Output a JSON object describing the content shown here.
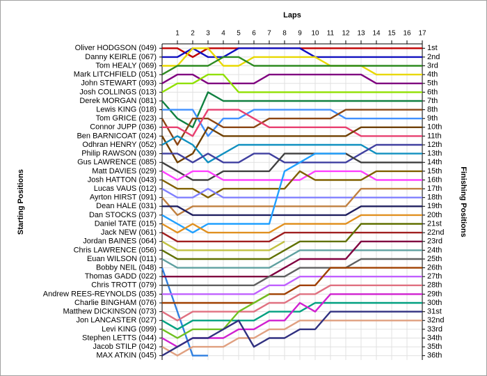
{
  "chart_data": {
    "type": "line",
    "x_label": "Laps",
    "y_label": "Starting Positions",
    "y2_label": "Finishing Positions",
    "x": [
      0,
      1,
      2,
      3,
      4,
      5,
      6,
      7,
      8,
      9,
      10,
      11,
      12,
      13,
      14,
      15,
      16,
      17
    ],
    "xlim": [
      0,
      17
    ],
    "xticks": [
      1,
      2,
      3,
      4,
      5,
      6,
      7,
      8,
      9,
      10,
      11,
      12,
      13,
      14,
      15,
      16,
      17
    ],
    "ylim": [
      36.5,
      0.5
    ],
    "yticks": [
      1,
      2,
      3,
      4,
      5,
      6,
      7,
      8,
      9,
      10,
      11,
      12,
      13,
      14,
      15,
      16,
      17,
      18,
      19,
      20,
      21,
      22,
      23,
      24,
      25,
      26,
      27,
      28,
      29,
      30,
      31,
      32,
      33,
      34,
      35,
      36
    ],
    "finishing_labels": [
      "1st",
      "2nd",
      "3rd",
      "4th",
      "5th",
      "6th",
      "7th",
      "8th",
      "9th",
      "10th",
      "11th",
      "12th",
      "13th",
      "14th",
      "15th",
      "16th",
      "17th",
      "18th",
      "19th",
      "20th",
      "21st",
      "22nd",
      "23rd",
      "24th",
      "25th",
      "26th",
      "27th",
      "28th",
      "29th",
      "30th",
      "31st",
      "32nd",
      "33rd",
      "34th",
      "35th",
      "36th"
    ],
    "grid": true,
    "series": [
      {
        "name": "Oliver HODGSON (049)",
        "color": "#c00000",
        "values": [
          1,
          1,
          2,
          1,
          1,
          1,
          1,
          1,
          1,
          1,
          1,
          1,
          1,
          1,
          1,
          1,
          1,
          1
        ]
      },
      {
        "name": "Danny KEIRLE (067)",
        "color": "#1010c0",
        "values": [
          2,
          2,
          1,
          2,
          2,
          1,
          1,
          1,
          1,
          1,
          2,
          2,
          2,
          2,
          2,
          2,
          2,
          2
        ]
      },
      {
        "name": "Tom HEALY (069)",
        "color": "#e8d800",
        "values": [
          3,
          3,
          1,
          1,
          3,
          3,
          2,
          2,
          2,
          2,
          2,
          3,
          3,
          3,
          4,
          4,
          4,
          4
        ]
      },
      {
        "name": "Mark LITCHFIELD (051)",
        "color": "#2e8b20",
        "values": [
          4,
          3,
          3,
          3,
          2,
          2,
          3,
          3,
          3,
          3,
          3,
          3,
          3,
          3,
          3,
          3,
          3,
          3
        ]
      },
      {
        "name": "John STEWART (093)",
        "color": "#800080",
        "values": [
          5,
          4,
          4,
          5,
          5,
          5,
          5,
          4,
          4,
          4,
          4,
          4,
          4,
          4,
          5,
          5,
          5,
          5
        ]
      },
      {
        "name": "Josh COLLINGS (013)",
        "color": "#90e000",
        "values": [
          6,
          5,
          5,
          4,
          4,
          6,
          6,
          6,
          6,
          6,
          6,
          6,
          6,
          6,
          6,
          6,
          6,
          6
        ]
      },
      {
        "name": "Derek MORGAN (081)",
        "color": "#108040",
        "values": [
          7,
          9,
          10,
          6,
          7,
          7,
          7,
          7,
          7,
          7,
          7,
          7,
          7,
          7,
          7,
          7,
          7,
          7
        ]
      },
      {
        "name": "Lewis KING (018)",
        "color": "#4090ff",
        "values": [
          8,
          8,
          8,
          11,
          9,
          9,
          8,
          8,
          8,
          8,
          8,
          8,
          9,
          9,
          9,
          9,
          9,
          9
        ]
      },
      {
        "name": "Tom GRICE (023)",
        "color": "#8b4513",
        "values": [
          9,
          12,
          9,
          9,
          10,
          10,
          10,
          9,
          9,
          9,
          9,
          9,
          8,
          8,
          8,
          8,
          8,
          8
        ]
      },
      {
        "name": "Connor JUPP (036)",
        "color": "#e84070",
        "values": [
          10,
          10,
          11,
          8,
          8,
          8,
          9,
          10,
          10,
          10,
          10,
          10,
          10,
          11,
          11,
          11,
          11,
          11
        ]
      },
      {
        "name": "Ben BARNICOAT (024)",
        "color": "#704000",
        "values": [
          11,
          14,
          13,
          10,
          11,
          11,
          11,
          11,
          11,
          11,
          11,
          11,
          11,
          10,
          10,
          10,
          10,
          10
        ]
      },
      {
        "name": "Odhran HENRY (052)",
        "color": "#1090c0",
        "values": [
          12,
          11,
          12,
          14,
          13,
          12,
          12,
          12,
          12,
          12,
          12,
          12,
          12,
          12,
          13,
          13,
          13,
          13
        ]
      },
      {
        "name": "Philip RAWSON (039)",
        "color": "#4040a0",
        "values": [
          13,
          13,
          14,
          13,
          14,
          14,
          13,
          13,
          14,
          14,
          14,
          14,
          14,
          13,
          12,
          12,
          12,
          12
        ]
      },
      {
        "name": "Gus LAWRENCE (085)",
        "color": "#404040",
        "values": [
          14,
          15,
          16,
          16,
          15,
          15,
          15,
          15,
          13,
          13,
          13,
          13,
          13,
          14,
          14,
          14,
          14,
          14
        ]
      },
      {
        "name": "Matt DAVIES (029)",
        "color": "#ff40ff",
        "values": [
          15,
          16,
          15,
          15,
          16,
          16,
          16,
          16,
          16,
          16,
          15,
          15,
          15,
          15,
          16,
          16,
          16,
          16
        ]
      },
      {
        "name": "Josh HATTON (043)",
        "color": "#806000",
        "values": [
          16,
          17,
          17,
          18,
          17,
          17,
          17,
          17,
          17,
          15,
          16,
          16,
          16,
          16,
          15,
          15,
          15,
          15
        ]
      },
      {
        "name": "Lucas VAUS (012)",
        "color": "#8080ff",
        "values": [
          17,
          18,
          18,
          17,
          18,
          18,
          18,
          18,
          18,
          18,
          18,
          18,
          18,
          18,
          18,
          18,
          18,
          18
        ]
      },
      {
        "name": "Ayrton HIRST (091)",
        "color": "#c08040",
        "values": [
          18,
          20,
          19,
          19,
          19,
          19,
          19,
          19,
          19,
          19,
          19,
          19,
          19,
          17,
          17,
          17,
          17,
          17
        ]
      },
      {
        "name": "Dean HALE (031)",
        "color": "#202060",
        "values": [
          19,
          19,
          20,
          20,
          20,
          20,
          20,
          20,
          20,
          20,
          20,
          20,
          20,
          19,
          19,
          19,
          19,
          19
        ]
      },
      {
        "name": "Dan STOCKS (037)",
        "color": "#20a0ff",
        "values": [
          20,
          21,
          22,
          21,
          21,
          21,
          21,
          21,
          15,
          14,
          13,
          13,
          13,
          null,
          null,
          null,
          null,
          null
        ]
      },
      {
        "name": "Daniel TATE (015)",
        "color": "#e09020",
        "values": [
          21,
          22,
          21,
          22,
          22,
          22,
          22,
          22,
          21,
          21,
          21,
          21,
          21,
          20,
          20,
          20,
          20,
          20
        ]
      },
      {
        "name": "Jack NEW (061)",
        "color": "#a02020",
        "values": [
          22,
          23,
          23,
          23,
          23,
          23,
          23,
          23,
          22,
          22,
          22,
          22,
          22,
          22,
          22,
          22,
          22,
          22
        ]
      },
      {
        "name": "Jordan BAINES (064)",
        "color": "#c0c040",
        "values": [
          23,
          24,
          24,
          24,
          24,
          24,
          24,
          24,
          23,
          null,
          null,
          null,
          null,
          null,
          null,
          null,
          null,
          null
        ]
      },
      {
        "name": "Chris LAWRENCE (056)",
        "color": "#607000",
        "values": [
          24,
          25,
          25,
          25,
          25,
          25,
          25,
          25,
          24,
          23,
          23,
          23,
          23,
          21,
          21,
          21,
          21,
          21
        ]
      },
      {
        "name": "Euan WILSON (011)",
        "color": "#5fa0a0",
        "values": [
          25,
          26,
          26,
          26,
          26,
          26,
          26,
          26,
          25,
          24,
          24,
          24,
          24,
          24,
          24,
          24,
          24,
          24
        ]
      },
      {
        "name": "Bobby NEIL (048)",
        "color": "#3080e0",
        "values": [
          26,
          31,
          36,
          36,
          null,
          null,
          null,
          null,
          null,
          null,
          null,
          null,
          null,
          null,
          null,
          null,
          null,
          null
        ]
      },
      {
        "name": "Thomas GADD (022)",
        "color": "#800040",
        "values": [
          27,
          27,
          27,
          27,
          27,
          27,
          27,
          27,
          26,
          25,
          25,
          25,
          25,
          23,
          23,
          23,
          23,
          23
        ]
      },
      {
        "name": "Chris TROTT (079)",
        "color": "#606060",
        "values": [
          28,
          28,
          28,
          28,
          28,
          28,
          28,
          27,
          27,
          26,
          26,
          26,
          26,
          25,
          25,
          25,
          25,
          25
        ]
      },
      {
        "name": "Andrew REES-REYNOLDS (035)",
        "color": "#c060ff",
        "values": [
          29,
          29,
          29,
          29,
          29,
          29,
          29,
          28,
          28,
          27,
          27,
          27,
          27,
          27,
          27,
          27,
          27,
          27
        ]
      },
      {
        "name": "Charlie BINGHAM (076)",
        "color": "#a04000",
        "values": [
          30,
          30,
          30,
          30,
          30,
          30,
          30,
          29,
          29,
          28,
          28,
          26,
          26,
          26,
          26,
          26,
          26,
          26
        ]
      },
      {
        "name": "Matthew DICKINSON (073)",
        "color": "#e07080",
        "values": [
          31,
          32,
          31,
          31,
          31,
          31,
          31,
          30,
          30,
          29,
          29,
          28,
          28,
          28,
          28,
          28,
          28,
          28
        ]
      },
      {
        "name": "Jon LANCASTER (027)",
        "color": "#00a080",
        "values": [
          32,
          33,
          32,
          32,
          32,
          32,
          32,
          31,
          31,
          31,
          30,
          30,
          30,
          30,
          30,
          30,
          30,
          30
        ]
      },
      {
        "name": "Levi KING (099)",
        "color": "#70c020",
        "values": [
          33,
          34,
          33,
          33,
          33,
          31,
          30,
          29,
          null,
          null,
          null,
          null,
          null,
          null,
          null,
          null,
          null,
          null
        ]
      },
      {
        "name": "Stephen LETTS (044)",
        "color": "#d020d0",
        "values": [
          34,
          35,
          34,
          34,
          34,
          33,
          33,
          32,
          32,
          30,
          31,
          29,
          29,
          29,
          29,
          29,
          29,
          29
        ]
      },
      {
        "name": "Jacob STILP (042)",
        "color": "#e0a080",
        "values": [
          35,
          36,
          35,
          35,
          35,
          34,
          34,
          33,
          33,
          32,
          32,
          32,
          32,
          32,
          32,
          32,
          32,
          32
        ]
      },
      {
        "name": "MAX ATKIN (045)",
        "color": "#303080",
        "values": [
          36,
          35,
          34,
          34,
          33,
          32,
          35,
          34,
          34,
          33,
          33,
          31,
          31,
          31,
          31,
          31,
          31,
          31
        ]
      }
    ]
  }
}
